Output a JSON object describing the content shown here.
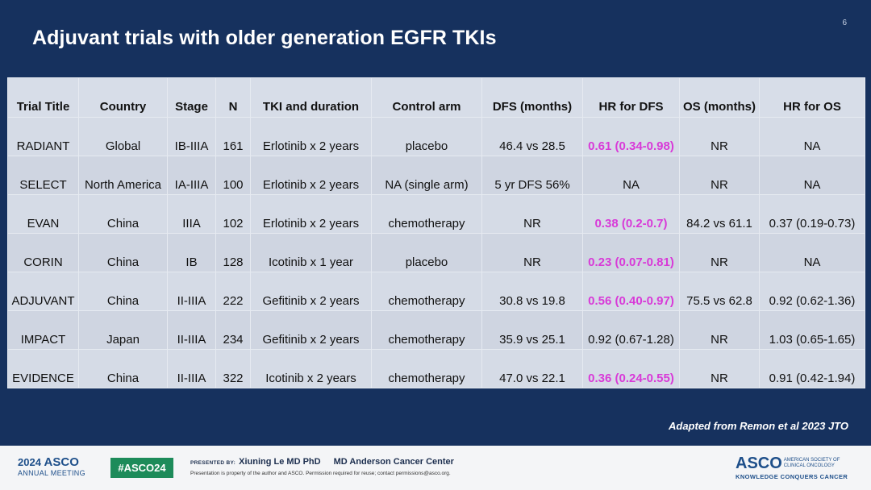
{
  "slide_number": "6",
  "title": "Adjuvant trials with older generation EGFR TKIs",
  "table": {
    "headers": [
      "Trial Title",
      "Country",
      "Stage",
      "N",
      "TKI and duration",
      "Control arm",
      "DFS (months)",
      "HR for DFS",
      "OS (months)",
      "HR for OS"
    ],
    "rows": [
      [
        "RADIANT",
        "Global",
        "IB-IIIA",
        "161",
        "Erlotinib x 2 years",
        "placebo",
        "46.4 vs 28.5",
        "0.61 (0.34-0.98)",
        "NR",
        "NA"
      ],
      [
        "SELECT",
        "North America",
        "IA-IIIA",
        "100",
        "Erlotinib x 2 years",
        "NA (single arm)",
        "5 yr DFS 56%",
        "NA",
        "NR",
        "NA"
      ],
      [
        "EVAN",
        "China",
        "IIIA",
        "102",
        "Erlotinib x 2 years",
        "chemotherapy",
        "NR",
        "0.38 (0.2-0.7)",
        "84.2 vs 61.1",
        "0.37 (0.19-0.73)"
      ],
      [
        "CORIN",
        "China",
        "IB",
        "128",
        "Icotinib x 1 year",
        "placebo",
        "NR",
        "0.23 (0.07-0.81)",
        "NR",
        "NA"
      ],
      [
        "ADJUVANT",
        "China",
        "II-IIIA",
        "222",
        "Gefitinib x 2 years",
        "chemotherapy",
        "30.8 vs 19.8",
        "0.56 (0.40-0.97)",
        "75.5 vs 62.8",
        "0.92 (0.62-1.36)"
      ],
      [
        "IMPACT",
        "Japan",
        "II-IIIA",
        "234",
        "Gefitinib x 2 years",
        "chemotherapy",
        "35.9 vs 25.1",
        "0.92 (0.67-1.28)",
        "NR",
        "1.03 (0.65-1.65)"
      ],
      [
        "EVIDENCE",
        "China",
        "II-IIIA",
        "322",
        "Icotinib x 2 years",
        "chemotherapy",
        "47.0 vs 22.1",
        "0.36 (0.24-0.55)",
        "NR",
        "0.91 (0.42-1.94)"
      ]
    ],
    "highlighted_cells": [
      [
        0,
        7
      ],
      [
        2,
        7
      ],
      [
        3,
        7
      ],
      [
        4,
        7
      ],
      [
        6,
        7
      ]
    ],
    "highlight_color": "#d83ad8"
  },
  "adapted_from": "Adapted from Remon et al 2023 JTO",
  "footer": {
    "meeting_year": "2024",
    "meeting_name": "ASCO",
    "meeting_sub": "ANNUAL MEETING",
    "hashtag": "#ASCO24",
    "presented_by_label": "PRESENTED BY:",
    "presenter": "Xiuning Le MD PhD",
    "institution": "MD Anderson Cancer Center",
    "disclaimer": "Presentation is property of the author and ASCO. Permission required for reuse; contact permissions@asco.org.",
    "logo_text": "ASCO",
    "logo_sub_1": "AMERICAN SOCIETY OF",
    "logo_sub_2": "CLINICAL ONCOLOGY",
    "logo_tagline": "KNOWLEDGE CONQUERS CANCER"
  },
  "colors": {
    "background": "#16315e",
    "hashtag_bg": "#1d8b5a",
    "brand": "#1e4f8a"
  }
}
